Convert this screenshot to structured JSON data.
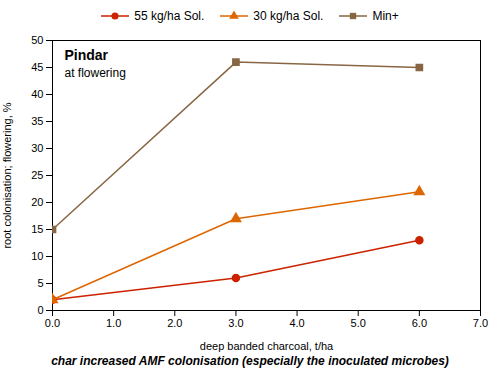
{
  "chart_data": {
    "type": "line",
    "title": "char increased AMF colonisation (especially the inoculated microbes)",
    "annotations": [
      "Pindar",
      "at flowering"
    ],
    "xlabel": "deep banded charcoal, t/ha",
    "ylabel": "root colonisation; flowering, %",
    "x": [
      0,
      3,
      6
    ],
    "series": [
      {
        "name": "55 kg/ha Sol.",
        "color": "#cc2200",
        "marker": "circle",
        "line_style": "solid",
        "values": [
          2,
          6,
          13
        ]
      },
      {
        "name": "30 kg/ha Sol.",
        "color": "#dd6600",
        "marker": "triangle",
        "line_style": "solid",
        "values": [
          2,
          17,
          22
        ]
      },
      {
        "name": "Min+",
        "color": "#886644",
        "marker": "square",
        "line_style": "solid",
        "values": [
          15,
          46,
          45
        ]
      }
    ],
    "xlim": [
      0,
      7
    ],
    "ylim": [
      0,
      50
    ],
    "xticks": [
      0,
      1,
      2,
      3,
      4,
      5,
      6,
      7
    ],
    "yticks": [
      0,
      5,
      10,
      15,
      20,
      25,
      30,
      35,
      40,
      45,
      50
    ],
    "grid": false,
    "legend": "top"
  }
}
